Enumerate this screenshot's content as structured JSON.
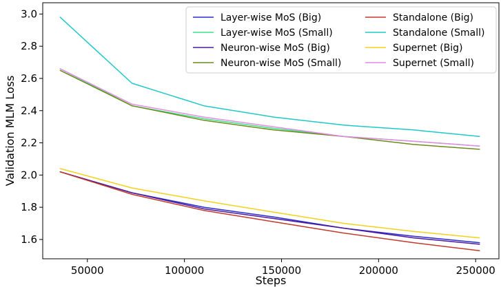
{
  "chart_data": {
    "type": "line",
    "xlabel": "Steps",
    "ylabel": "Validation MLM Loss",
    "xlim": [
      27000,
      262000
    ],
    "ylim": [
      1.48,
      3.07
    ],
    "xticks": [
      50000,
      100000,
      150000,
      200000,
      250000
    ],
    "xtick_labels": [
      "50000",
      "100000",
      "150000",
      "200000",
      "250000"
    ],
    "yticks": [
      1.6,
      1.8,
      2.0,
      2.2,
      2.4,
      2.6,
      2.8,
      3.0
    ],
    "ytick_labels": [
      "1.6",
      "1.8",
      "2.0",
      "2.2",
      "2.4",
      "2.6",
      "2.8",
      "3.0"
    ],
    "grid": false,
    "legend_position": "top-right",
    "legend_columns": 2,
    "x": [
      36000,
      73000,
      110000,
      146000,
      182000,
      218000,
      252000
    ],
    "series": [
      {
        "name": "Layer-wise MoS (Big)",
        "color": "#2a2ad0",
        "values": [
          2.02,
          1.89,
          1.8,
          1.74,
          1.67,
          1.62,
          1.58
        ]
      },
      {
        "name": "Layer-wise MoS (Small)",
        "color": "#3ee08a",
        "values": [
          2.66,
          2.43,
          2.35,
          2.29,
          2.24,
          2.21,
          2.18
        ]
      },
      {
        "name": "Neuron-wise MoS (Big)",
        "color": "#4b1a9a",
        "values": [
          2.02,
          1.89,
          1.79,
          1.73,
          1.67,
          1.61,
          1.57
        ]
      },
      {
        "name": "Neuron-wise MoS (Small)",
        "color": "#6b8a1a",
        "values": [
          2.65,
          2.43,
          2.34,
          2.28,
          2.24,
          2.19,
          2.16
        ]
      },
      {
        "name": "Standalone (Big)",
        "color": "#c0392b",
        "values": [
          2.02,
          1.88,
          1.78,
          1.71,
          1.64,
          1.58,
          1.53
        ]
      },
      {
        "name": "Standalone (Small)",
        "color": "#1ec8c8",
        "values": [
          2.98,
          2.57,
          2.43,
          2.36,
          2.31,
          2.28,
          2.24
        ]
      },
      {
        "name": "Supernet (Big)",
        "color": "#f2d21b",
        "values": [
          2.04,
          1.92,
          1.84,
          1.77,
          1.7,
          1.65,
          1.61
        ]
      },
      {
        "name": "Supernet (Small)",
        "color": "#e68ae6",
        "values": [
          2.66,
          2.44,
          2.36,
          2.3,
          2.24,
          2.21,
          2.18
        ]
      }
    ]
  }
}
